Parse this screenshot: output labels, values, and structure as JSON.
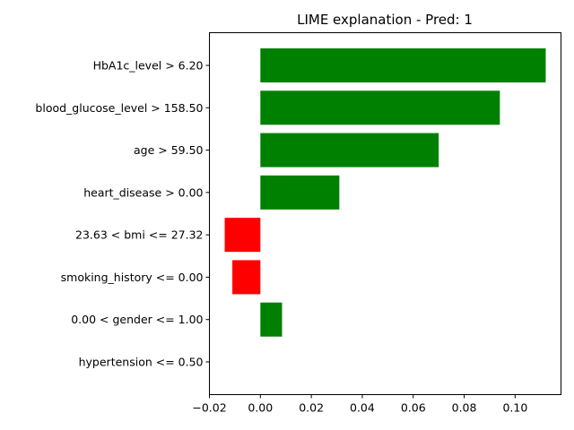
{
  "chart_data": {
    "type": "bar",
    "orientation": "horizontal",
    "title": "LIME explanation - Pred: 1",
    "xlabel": "",
    "ylabel": "",
    "xlim": [
      -0.02,
      0.118
    ],
    "xticks": [
      "−0.02",
      "0.00",
      "0.02",
      "0.04",
      "0.06",
      "0.08",
      "0.10"
    ],
    "xtick_values": [
      -0.02,
      0.0,
      0.02,
      0.04,
      0.06,
      0.08,
      0.1
    ],
    "grid": false,
    "categories": [
      "HbA1c_level > 6.20",
      "blood_glucose_level > 158.50",
      "age > 59.50",
      "heart_disease > 0.00",
      "23.63 < bmi <= 27.32",
      "smoking_history <= 0.00",
      "0.00 < gender <= 1.00",
      "hypertension <= 0.50"
    ],
    "values": [
      0.112,
      0.094,
      0.07,
      0.031,
      -0.014,
      -0.011,
      0.0085,
      0.0
    ],
    "colors": {
      "positive": "#008000",
      "negative": "#ff0000"
    }
  }
}
